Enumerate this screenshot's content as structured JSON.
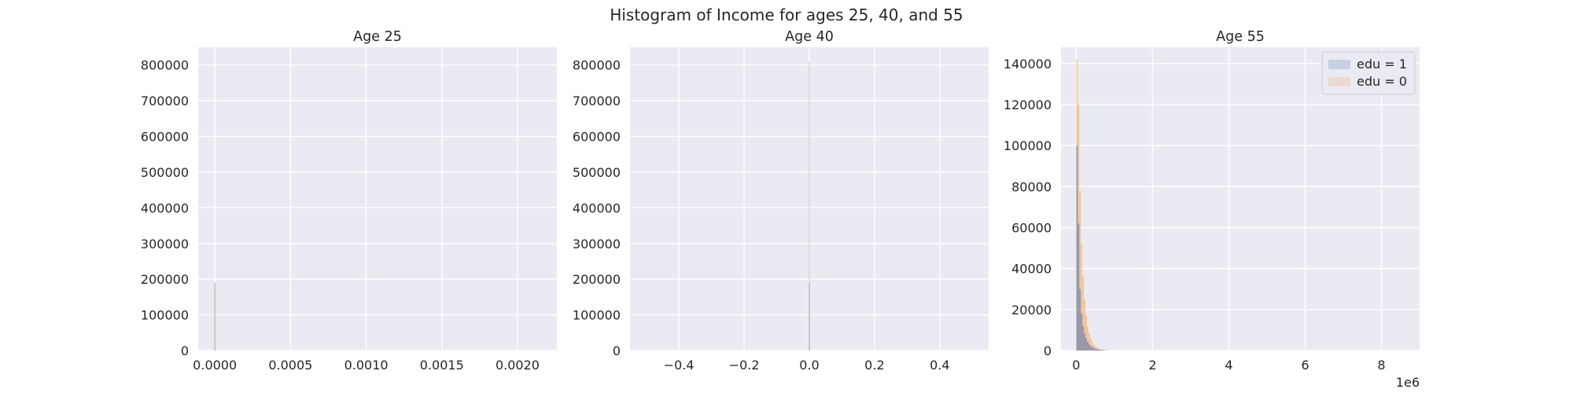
{
  "figure_title": "Histogram of Income for ages 25, 40, and 55",
  "colors": {
    "panel_background": "#EAEAF2",
    "grid": "#FFFFFF",
    "edu_1": "#4C72B0",
    "edu_0": "#F5A55A",
    "overlap": "#C9C3B8"
  },
  "chart_data": [
    {
      "type": "histogram",
      "title": "Age 25",
      "xlabel": "",
      "ylabel": "",
      "xlim": [
        -0.00011,
        0.00226
      ],
      "ylim": [
        0,
        850000
      ],
      "xticks": [
        0.0,
        0.0005,
        0.001,
        0.0015,
        0.002
      ],
      "xtick_labels": [
        "0.0000",
        "0.0005",
        "0.0010",
        "0.0015",
        "0.0020"
      ],
      "yticks": [
        0,
        100000,
        200000,
        300000,
        400000,
        500000,
        600000,
        700000,
        800000
      ],
      "ytick_labels": [
        "0",
        "100000",
        "200000",
        "300000",
        "400000",
        "500000",
        "600000",
        "700000",
        "800000"
      ],
      "grid": true,
      "series": [
        {
          "name": "edu = 1",
          "bins": [
            {
              "x": 0.0,
              "count": 190000
            }
          ]
        }
      ]
    },
    {
      "type": "histogram",
      "title": "Age 40",
      "xlabel": "",
      "ylabel": "",
      "xlim": [
        -0.55,
        0.55
      ],
      "ylim": [
        0,
        850000
      ],
      "xticks": [
        -0.4,
        -0.2,
        0.0,
        0.2,
        0.4
      ],
      "xtick_labels": [
        "−0.4",
        "−0.2",
        "0.0",
        "0.2",
        "0.4"
      ],
      "yticks": [
        0,
        100000,
        200000,
        300000,
        400000,
        500000,
        600000,
        700000,
        800000
      ],
      "ytick_labels": [
        "0",
        "100000",
        "200000",
        "300000",
        "400000",
        "500000",
        "600000",
        "700000",
        "800000"
      ],
      "grid": true,
      "series": [
        {
          "name": "edu = 0",
          "bins": [
            {
              "x": 0.0,
              "count": 810000
            }
          ]
        },
        {
          "name": "edu = 1",
          "bins": [
            {
              "x": 0.0,
              "count": 190000
            }
          ]
        }
      ]
    },
    {
      "type": "histogram",
      "title": "Age 55",
      "xlabel": "",
      "ylabel": "",
      "x_offset_label": "1e6",
      "xlim": [
        -0.4,
        9.0
      ],
      "ylim": [
        0,
        148000
      ],
      "xticks": [
        0,
        2,
        4,
        6,
        8
      ],
      "xtick_labels": [
        "0",
        "2",
        "4",
        "6",
        "8"
      ],
      "yticks": [
        0,
        20000,
        40000,
        60000,
        80000,
        100000,
        120000,
        140000
      ],
      "ytick_labels": [
        "0",
        "20000",
        "40000",
        "60000",
        "80000",
        "100000",
        "120000",
        "140000"
      ],
      "grid": true,
      "legend": {
        "placement": "top-right",
        "entries": [
          "edu = 1",
          "edu = 0"
        ]
      },
      "series": [
        {
          "name": "edu = 0",
          "bin_width": 0.04,
          "bins": [
            {
              "x": 0.0,
              "count": 142000
            },
            {
              "x": 0.04,
              "count": 120000
            },
            {
              "x": 0.08,
              "count": 78000
            },
            {
              "x": 0.12,
              "count": 52000
            },
            {
              "x": 0.16,
              "count": 36000
            },
            {
              "x": 0.2,
              "count": 25000
            },
            {
              "x": 0.24,
              "count": 17000
            },
            {
              "x": 0.28,
              "count": 12000
            },
            {
              "x": 0.32,
              "count": 8500
            },
            {
              "x": 0.36,
              "count": 6000
            },
            {
              "x": 0.4,
              "count": 4300
            },
            {
              "x": 0.44,
              "count": 3000
            },
            {
              "x": 0.48,
              "count": 2100
            },
            {
              "x": 0.52,
              "count": 1500
            },
            {
              "x": 0.56,
              "count": 1050
            },
            {
              "x": 0.6,
              "count": 750
            },
            {
              "x": 0.64,
              "count": 520
            },
            {
              "x": 0.68,
              "count": 360
            },
            {
              "x": 0.72,
              "count": 250
            },
            {
              "x": 0.76,
              "count": 170
            },
            {
              "x": 0.8,
              "count": 110
            }
          ]
        },
        {
          "name": "edu = 1",
          "bin_width": 0.04,
          "bins": [
            {
              "x": 0.0,
              "count": 100000
            },
            {
              "x": 0.04,
              "count": 62000
            },
            {
              "x": 0.08,
              "count": 30000
            },
            {
              "x": 0.12,
              "count": 18000
            },
            {
              "x": 0.16,
              "count": 12000
            },
            {
              "x": 0.2,
              "count": 8500
            },
            {
              "x": 0.24,
              "count": 6000
            },
            {
              "x": 0.28,
              "count": 4300
            },
            {
              "x": 0.32,
              "count": 3100
            },
            {
              "x": 0.36,
              "count": 2300
            },
            {
              "x": 0.4,
              "count": 1700
            },
            {
              "x": 0.44,
              "count": 1250
            },
            {
              "x": 0.48,
              "count": 950
            },
            {
              "x": 0.52,
              "count": 700
            },
            {
              "x": 0.56,
              "count": 520
            },
            {
              "x": 0.6,
              "count": 380
            },
            {
              "x": 0.64,
              "count": 280
            },
            {
              "x": 0.68,
              "count": 200
            },
            {
              "x": 0.72,
              "count": 140
            },
            {
              "x": 0.76,
              "count": 100
            }
          ]
        }
      ]
    }
  ]
}
